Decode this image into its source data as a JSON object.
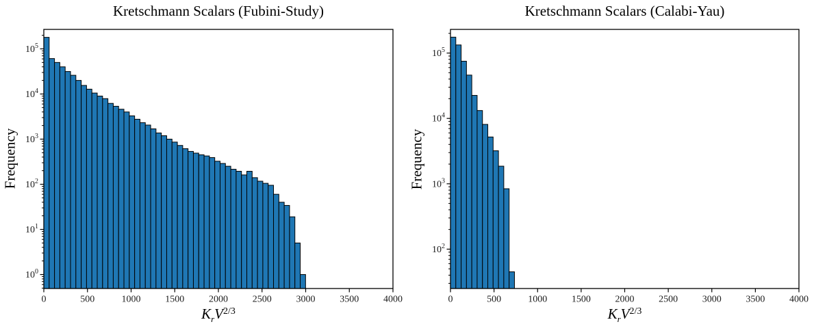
{
  "figure": {
    "background_color": "#ffffff",
    "text_color": "#000000"
  },
  "chart_data": [
    {
      "type": "bar",
      "subtype": "histogram",
      "title": "Kretschmann Scalars (Fubini-Study)",
      "ylabel": "Frequency",
      "xlabel": "K_r V^(2/3)",
      "xlabel_parts": {
        "base": "K",
        "sub": "r",
        "var": "V",
        "sup": "2/3"
      },
      "yscale": "log",
      "grid": false,
      "legend": null,
      "bar_color": "#1f77b4",
      "edge_color": "#000000",
      "xlim": [
        0,
        4000
      ],
      "ylim": [
        0.49,
        270000
      ],
      "xticks": [
        0,
        500,
        1000,
        1500,
        2000,
        2500,
        3000,
        3500,
        4000
      ],
      "ytick_exponents": [
        0,
        1,
        2,
        3,
        4,
        5
      ],
      "bin_start": 0,
      "bin_width": 61.2,
      "values": [
        180000,
        61000,
        50000,
        40000,
        31500,
        26000,
        20000,
        15500,
        12800,
        10500,
        9000,
        7900,
        6200,
        5350,
        4600,
        4000,
        3280,
        2760,
        2320,
        2050,
        1690,
        1370,
        1190,
        1000,
        860,
        725,
        615,
        535,
        490,
        450,
        424,
        390,
        324,
        289,
        251,
        215,
        194,
        161,
        194,
        140,
        117,
        105,
        95,
        60,
        40,
        34,
        19,
        5,
        1
      ]
    },
    {
      "type": "bar",
      "subtype": "histogram",
      "title": "Kretschmann Scalars (Calabi-Yau)",
      "ylabel": "Frequency",
      "xlabel": "K_r V^(2/3)",
      "xlabel_parts": {
        "base": "K",
        "sub": "r",
        "var": "V",
        "sup": "2/3"
      },
      "yscale": "log",
      "grid": false,
      "legend": null,
      "bar_color": "#1f77b4",
      "edge_color": "#000000",
      "xlim": [
        0,
        4000
      ],
      "ylim": [
        25,
        230000
      ],
      "xticks": [
        0,
        500,
        1000,
        1500,
        2000,
        2500,
        3000,
        3500,
        4000
      ],
      "ytick_exponents": [
        2,
        3,
        4,
        5
      ],
      "bin_start": 0,
      "bin_width": 61.2,
      "values": [
        175000,
        133000,
        75000,
        46000,
        22500,
        13200,
        8100,
        5200,
        3200,
        1860,
        840,
        45
      ]
    }
  ]
}
